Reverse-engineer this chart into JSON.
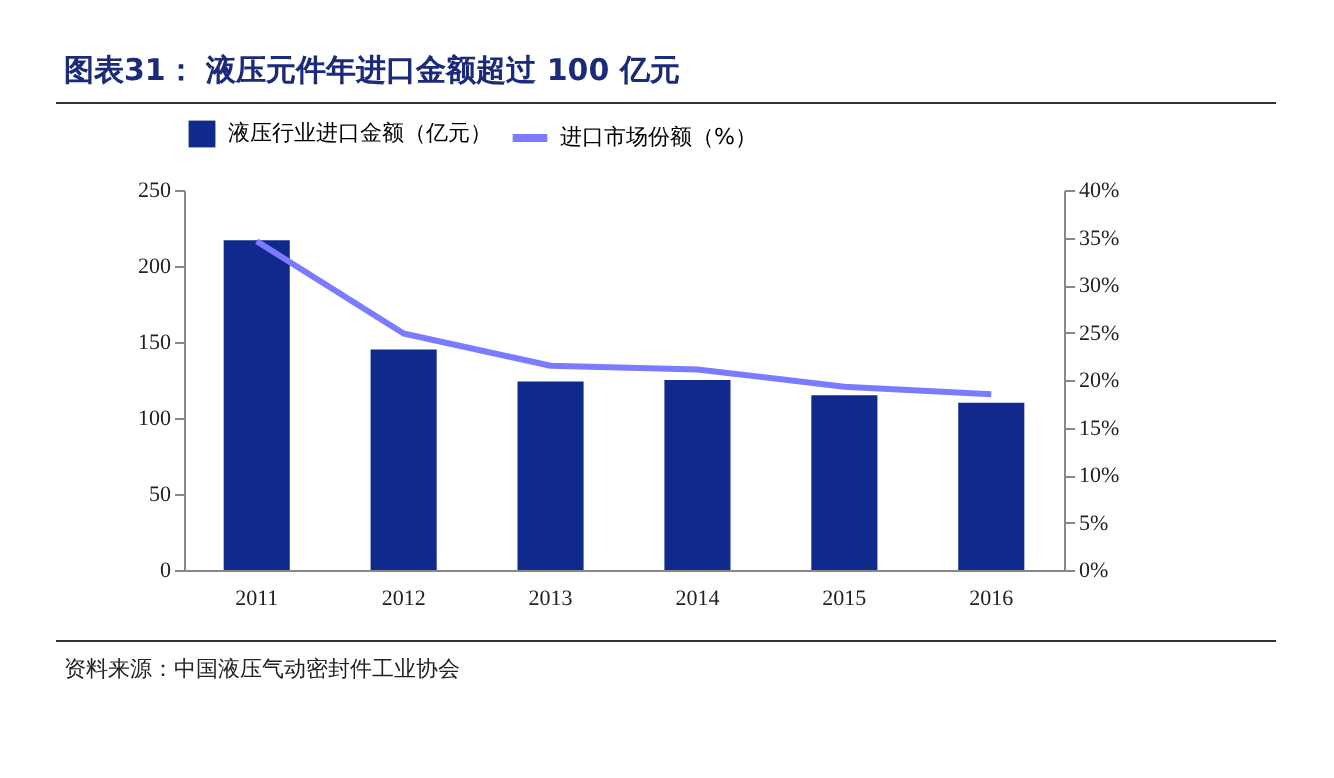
{
  "chart_data": {
    "type": "bar",
    "title": "图表31：  液压元件年进口金额超过 100 亿元",
    "categories": [
      "2011",
      "2012",
      "2013",
      "2014",
      "2015",
      "2016"
    ],
    "series": [
      {
        "name": "液压行业进口金额（亿元）",
        "color": "#0f2a8c",
        "values": [
          217,
          145,
          124,
          125,
          115,
          110
        ]
      },
      {
        "name": "进口市场份额（%）",
        "type": "line",
        "axis": "y2",
        "color": "#7b7bff",
        "values": [
          34.6,
          24.9,
          21.5,
          21.1,
          19.3,
          18.5
        ]
      }
    ],
    "ylim": [
      0,
      250
    ],
    "yticks": [
      0,
      50,
      100,
      150,
      200,
      250
    ],
    "y2lim": [
      0,
      40
    ],
    "y2ticks": [
      {
        "value": 0,
        "label": "0%"
      },
      {
        "value": 5,
        "label": "5%"
      },
      {
        "value": 10,
        "label": "10%"
      },
      {
        "value": 15,
        "label": "15%"
      },
      {
        "value": 20,
        "label": "20%"
      },
      {
        "value": 25,
        "label": "25%"
      },
      {
        "value": 30,
        "label": "30%"
      },
      {
        "value": 35,
        "label": "35%"
      },
      {
        "value": 40,
        "label": "40%"
      }
    ],
    "grid": false,
    "legend": "top",
    "marker": "none",
    "annotations": [
      "资料来源：中国液压气动密封件工业协会"
    ]
  }
}
